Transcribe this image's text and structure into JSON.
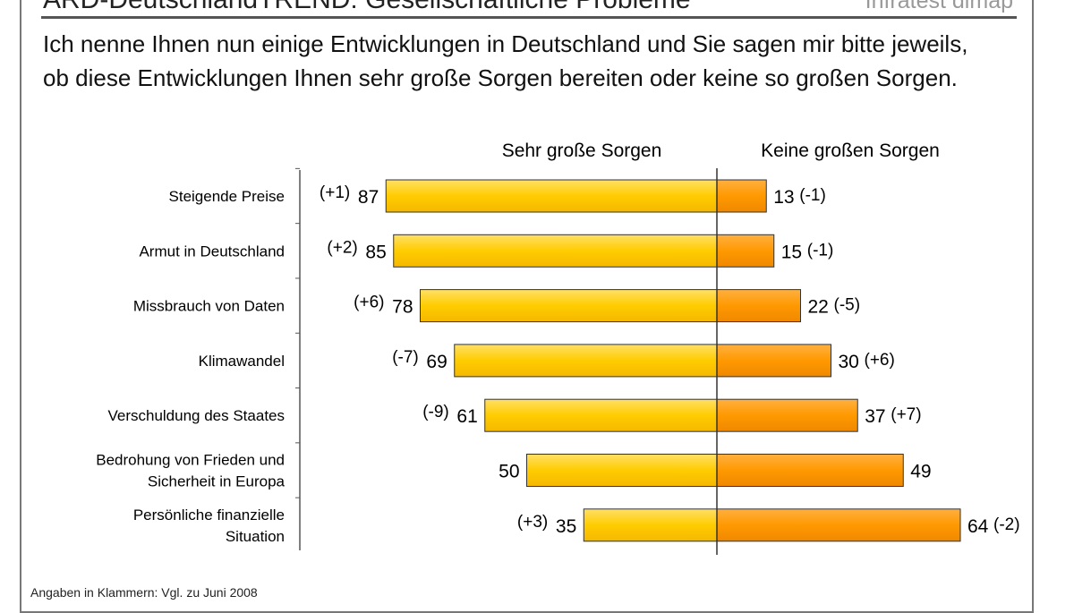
{
  "header": {
    "title": "ARD-DeutschlandTREND: Gesellschaftliche Probleme",
    "brand": "Infratest dimap"
  },
  "question": "Ich nenne Ihnen nun einige Entwicklungen in Deutschland und Sie sagen mir bitte jeweils, ob diese Entwicklungen Ihnen sehr große Sorgen bereiten oder keine so großen Sorgen.",
  "footnote": "Angaben in Klammern: Vgl. zu Juni 2008",
  "chart_data": {
    "type": "bar",
    "orientation": "diverging-horizontal",
    "categories": [
      "Steigende Preise",
      "Armut in Deutschland",
      "Missbrauch von Daten",
      "Klimawandel",
      "Verschuldung des Staates",
      "Bedrohung von Frieden und Sicherheit in Europa",
      "Persönliche finanzielle Situation"
    ],
    "category_lines": [
      [
        "Steigende Preise"
      ],
      [
        "Armut in Deutschland"
      ],
      [
        "Missbrauch von Daten"
      ],
      [
        "Klimawandel"
      ],
      [
        "Verschuldung des Staates"
      ],
      [
        "Bedrohung von Frieden und",
        "Sicherheit in Europa"
      ],
      [
        "Persönliche finanzielle",
        "Situation"
      ]
    ],
    "series": [
      {
        "name": "Sehr große Sorgen",
        "values": [
          87,
          85,
          78,
          69,
          61,
          50,
          35
        ],
        "changes": [
          "(+1)",
          "(+2)",
          "(+6)",
          "(-7)",
          "(-9)",
          "",
          "(+3)"
        ],
        "color": "#FFCC00"
      },
      {
        "name": "Keine großen Sorgen",
        "values": [
          13,
          15,
          22,
          30,
          37,
          49,
          64
        ],
        "changes": [
          "(-1)",
          "(-1)",
          "(-5)",
          "(+6)",
          "(+7)",
          "",
          "(-2)"
        ],
        "color": "#FF9900"
      }
    ],
    "unit": "%",
    "grid": false
  }
}
